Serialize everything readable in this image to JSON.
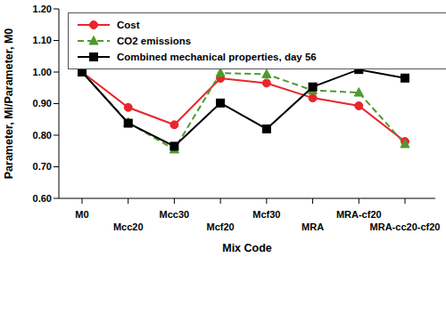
{
  "chart_data": {
    "type": "line",
    "x_label": "Mix Code",
    "y_label": "Parameter, Mi/Parameter, M0",
    "categories": [
      "M0",
      "Mcc20",
      "Mcc30",
      "Mcf20",
      "Mcf30",
      "MRA",
      "MRA-cf20",
      "MRA-cc20-cf20"
    ],
    "series": [
      {
        "name": "Cost",
        "color": "#e8262b",
        "marker": "circle",
        "line_style": "solid",
        "values": [
          1.0,
          0.888,
          0.833,
          0.98,
          0.965,
          0.918,
          0.893,
          0.78
        ]
      },
      {
        "name": "CO2 emissions",
        "color": "#4f9a2f",
        "marker": "triangle",
        "line_style": "dashed",
        "values": [
          1.0,
          0.84,
          0.755,
          0.997,
          0.993,
          0.942,
          0.935,
          0.772
        ]
      },
      {
        "name": "Combined mechanical properties, day 56",
        "color": "#000000",
        "marker": "square",
        "line_style": "solid",
        "values": [
          1.0,
          0.838,
          0.765,
          0.902,
          0.82,
          0.953,
          1.008,
          0.981
        ]
      }
    ],
    "ylim": [
      0.6,
      1.2
    ],
    "yticks": [
      {
        "value": 0.6,
        "label": "0.60"
      },
      {
        "value": 0.7,
        "label": "0.70"
      },
      {
        "value": 0.8,
        "label": "0.80"
      },
      {
        "value": 0.9,
        "label": "0.90"
      },
      {
        "value": 1.0,
        "label": "1.00"
      },
      {
        "value": 1.1,
        "label": "1.10"
      },
      {
        "value": 1.2,
        "label": "1.20"
      }
    ],
    "grid": false,
    "legend": "upper left"
  }
}
